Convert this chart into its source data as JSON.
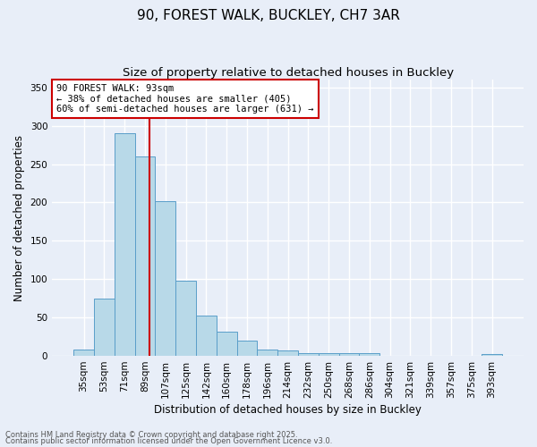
{
  "title1": "90, FOREST WALK, BUCKLEY, CH7 3AR",
  "title2": "Size of property relative to detached houses in Buckley",
  "xlabel": "Distribution of detached houses by size in Buckley",
  "ylabel": "Number of detached properties",
  "categories": [
    "35sqm",
    "53sqm",
    "71sqm",
    "89sqm",
    "107sqm",
    "125sqm",
    "142sqm",
    "160sqm",
    "178sqm",
    "196sqm",
    "214sqm",
    "232sqm",
    "250sqm",
    "268sqm",
    "286sqm",
    "304sqm",
    "321sqm",
    "339sqm",
    "357sqm",
    "375sqm",
    "393sqm"
  ],
  "values": [
    8,
    75,
    290,
    260,
    202,
    98,
    53,
    32,
    20,
    8,
    7,
    4,
    4,
    4,
    4,
    0,
    0,
    0,
    0,
    0,
    2
  ],
  "bar_color": "#b8d9e8",
  "bar_edge_color": "#5a9ec9",
  "annotation_text": "90 FOREST WALK: 93sqm\n← 38% of detached houses are smaller (405)\n60% of semi-detached houses are larger (631) →",
  "annotation_box_color": "#ffffff",
  "annotation_box_edge_color": "#cc0000",
  "vline_color": "#cc0000",
  "ylim": [
    0,
    360
  ],
  "yticks": [
    0,
    50,
    100,
    150,
    200,
    250,
    300,
    350
  ],
  "footer1": "Contains HM Land Registry data © Crown copyright and database right 2025.",
  "footer2": "Contains public sector information licensed under the Open Government Licence v3.0.",
  "bg_color": "#e8eef8",
  "grid_color": "#ffffff",
  "title1_fontsize": 11,
  "title2_fontsize": 9.5,
  "annot_fontsize": 7.5,
  "xlabel_fontsize": 8.5,
  "ylabel_fontsize": 8.5,
  "tick_fontsize": 7.5,
  "footer_fontsize": 6.0
}
